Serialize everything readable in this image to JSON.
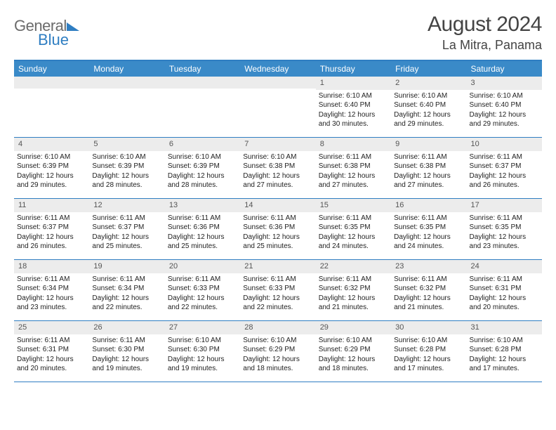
{
  "colors": {
    "header_blue": "#3a8ac8",
    "border_blue": "#2f7ec2",
    "daynum_bg": "#ececec",
    "text": "#333333",
    "logo_gray": "#6b6b6b",
    "logo_blue": "#2f7ec2",
    "white": "#ffffff"
  },
  "logo": {
    "part1": "General",
    "part2": "Blue"
  },
  "title": "August 2024",
  "location": "La Mitra, Panama",
  "weekdays": [
    "Sunday",
    "Monday",
    "Tuesday",
    "Wednesday",
    "Thursday",
    "Friday",
    "Saturday"
  ],
  "weeks": [
    [
      null,
      null,
      null,
      null,
      {
        "n": "1",
        "sr": "Sunrise: 6:10 AM",
        "ss": "Sunset: 6:40 PM",
        "d1": "Daylight: 12 hours",
        "d2": "and 30 minutes."
      },
      {
        "n": "2",
        "sr": "Sunrise: 6:10 AM",
        "ss": "Sunset: 6:40 PM",
        "d1": "Daylight: 12 hours",
        "d2": "and 29 minutes."
      },
      {
        "n": "3",
        "sr": "Sunrise: 6:10 AM",
        "ss": "Sunset: 6:40 PM",
        "d1": "Daylight: 12 hours",
        "d2": "and 29 minutes."
      }
    ],
    [
      {
        "n": "4",
        "sr": "Sunrise: 6:10 AM",
        "ss": "Sunset: 6:39 PM",
        "d1": "Daylight: 12 hours",
        "d2": "and 29 minutes."
      },
      {
        "n": "5",
        "sr": "Sunrise: 6:10 AM",
        "ss": "Sunset: 6:39 PM",
        "d1": "Daylight: 12 hours",
        "d2": "and 28 minutes."
      },
      {
        "n": "6",
        "sr": "Sunrise: 6:10 AM",
        "ss": "Sunset: 6:39 PM",
        "d1": "Daylight: 12 hours",
        "d2": "and 28 minutes."
      },
      {
        "n": "7",
        "sr": "Sunrise: 6:10 AM",
        "ss": "Sunset: 6:38 PM",
        "d1": "Daylight: 12 hours",
        "d2": "and 27 minutes."
      },
      {
        "n": "8",
        "sr": "Sunrise: 6:11 AM",
        "ss": "Sunset: 6:38 PM",
        "d1": "Daylight: 12 hours",
        "d2": "and 27 minutes."
      },
      {
        "n": "9",
        "sr": "Sunrise: 6:11 AM",
        "ss": "Sunset: 6:38 PM",
        "d1": "Daylight: 12 hours",
        "d2": "and 27 minutes."
      },
      {
        "n": "10",
        "sr": "Sunrise: 6:11 AM",
        "ss": "Sunset: 6:37 PM",
        "d1": "Daylight: 12 hours",
        "d2": "and 26 minutes."
      }
    ],
    [
      {
        "n": "11",
        "sr": "Sunrise: 6:11 AM",
        "ss": "Sunset: 6:37 PM",
        "d1": "Daylight: 12 hours",
        "d2": "and 26 minutes."
      },
      {
        "n": "12",
        "sr": "Sunrise: 6:11 AM",
        "ss": "Sunset: 6:37 PM",
        "d1": "Daylight: 12 hours",
        "d2": "and 25 minutes."
      },
      {
        "n": "13",
        "sr": "Sunrise: 6:11 AM",
        "ss": "Sunset: 6:36 PM",
        "d1": "Daylight: 12 hours",
        "d2": "and 25 minutes."
      },
      {
        "n": "14",
        "sr": "Sunrise: 6:11 AM",
        "ss": "Sunset: 6:36 PM",
        "d1": "Daylight: 12 hours",
        "d2": "and 25 minutes."
      },
      {
        "n": "15",
        "sr": "Sunrise: 6:11 AM",
        "ss": "Sunset: 6:35 PM",
        "d1": "Daylight: 12 hours",
        "d2": "and 24 minutes."
      },
      {
        "n": "16",
        "sr": "Sunrise: 6:11 AM",
        "ss": "Sunset: 6:35 PM",
        "d1": "Daylight: 12 hours",
        "d2": "and 24 minutes."
      },
      {
        "n": "17",
        "sr": "Sunrise: 6:11 AM",
        "ss": "Sunset: 6:35 PM",
        "d1": "Daylight: 12 hours",
        "d2": "and 23 minutes."
      }
    ],
    [
      {
        "n": "18",
        "sr": "Sunrise: 6:11 AM",
        "ss": "Sunset: 6:34 PM",
        "d1": "Daylight: 12 hours",
        "d2": "and 23 minutes."
      },
      {
        "n": "19",
        "sr": "Sunrise: 6:11 AM",
        "ss": "Sunset: 6:34 PM",
        "d1": "Daylight: 12 hours",
        "d2": "and 22 minutes."
      },
      {
        "n": "20",
        "sr": "Sunrise: 6:11 AM",
        "ss": "Sunset: 6:33 PM",
        "d1": "Daylight: 12 hours",
        "d2": "and 22 minutes."
      },
      {
        "n": "21",
        "sr": "Sunrise: 6:11 AM",
        "ss": "Sunset: 6:33 PM",
        "d1": "Daylight: 12 hours",
        "d2": "and 22 minutes."
      },
      {
        "n": "22",
        "sr": "Sunrise: 6:11 AM",
        "ss": "Sunset: 6:32 PM",
        "d1": "Daylight: 12 hours",
        "d2": "and 21 minutes."
      },
      {
        "n": "23",
        "sr": "Sunrise: 6:11 AM",
        "ss": "Sunset: 6:32 PM",
        "d1": "Daylight: 12 hours",
        "d2": "and 21 minutes."
      },
      {
        "n": "24",
        "sr": "Sunrise: 6:11 AM",
        "ss": "Sunset: 6:31 PM",
        "d1": "Daylight: 12 hours",
        "d2": "and 20 minutes."
      }
    ],
    [
      {
        "n": "25",
        "sr": "Sunrise: 6:11 AM",
        "ss": "Sunset: 6:31 PM",
        "d1": "Daylight: 12 hours",
        "d2": "and 20 minutes."
      },
      {
        "n": "26",
        "sr": "Sunrise: 6:11 AM",
        "ss": "Sunset: 6:30 PM",
        "d1": "Daylight: 12 hours",
        "d2": "and 19 minutes."
      },
      {
        "n": "27",
        "sr": "Sunrise: 6:10 AM",
        "ss": "Sunset: 6:30 PM",
        "d1": "Daylight: 12 hours",
        "d2": "and 19 minutes."
      },
      {
        "n": "28",
        "sr": "Sunrise: 6:10 AM",
        "ss": "Sunset: 6:29 PM",
        "d1": "Daylight: 12 hours",
        "d2": "and 18 minutes."
      },
      {
        "n": "29",
        "sr": "Sunrise: 6:10 AM",
        "ss": "Sunset: 6:29 PM",
        "d1": "Daylight: 12 hours",
        "d2": "and 18 minutes."
      },
      {
        "n": "30",
        "sr": "Sunrise: 6:10 AM",
        "ss": "Sunset: 6:28 PM",
        "d1": "Daylight: 12 hours",
        "d2": "and 17 minutes."
      },
      {
        "n": "31",
        "sr": "Sunrise: 6:10 AM",
        "ss": "Sunset: 6:28 PM",
        "d1": "Daylight: 12 hours",
        "d2": "and 17 minutes."
      }
    ]
  ]
}
